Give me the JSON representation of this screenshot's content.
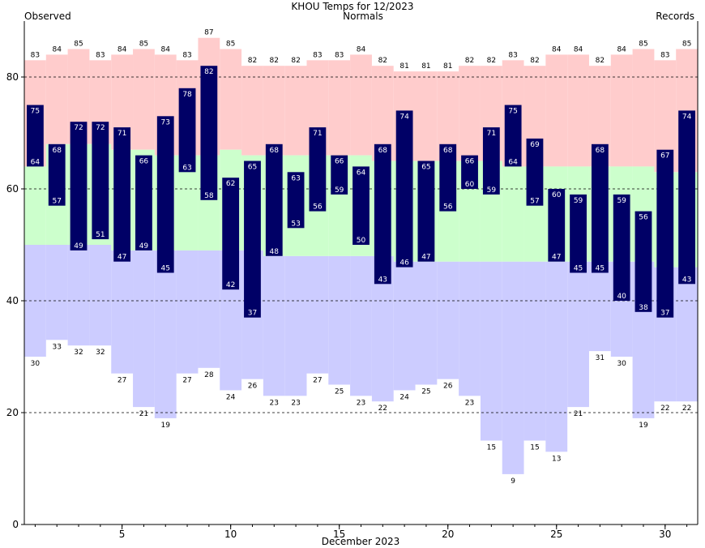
{
  "chart_data": {
    "type": "bar",
    "title": "KHOU Temps for 12/2023",
    "xlabel": "December 2023",
    "ylabel": "",
    "legend": {
      "observed": "Observed",
      "normals": "Normals",
      "records": "Records"
    },
    "colors": {
      "observed": "#000066",
      "normals": "#ccffcc",
      "records": "#ffcccc",
      "records_low": "#ccccff",
      "observed_label": "#000066",
      "normals_label": "#006600",
      "records_label": "#cc66cc"
    },
    "ylim": [
      0,
      90
    ],
    "xlim": [
      0.5,
      31.5
    ],
    "yticks": [
      0,
      20,
      40,
      60,
      80
    ],
    "xticks": [
      5,
      10,
      15,
      20,
      25,
      30
    ],
    "grid": "dashed at 20, 40, 60, 80",
    "days": [
      1,
      2,
      3,
      4,
      5,
      6,
      7,
      8,
      9,
      10,
      11,
      12,
      13,
      14,
      15,
      16,
      17,
      18,
      19,
      20,
      21,
      22,
      23,
      24,
      25,
      26,
      27,
      28,
      29,
      30,
      31
    ],
    "observed_high": [
      75,
      68,
      72,
      72,
      71,
      66,
      73,
      78,
      82,
      62,
      65,
      68,
      63,
      71,
      66,
      64,
      68,
      74,
      65,
      68,
      66,
      71,
      75,
      69,
      60,
      59,
      68,
      59,
      56,
      67,
      74
    ],
    "observed_low": [
      64,
      57,
      49,
      51,
      47,
      49,
      45,
      63,
      58,
      42,
      37,
      48,
      53,
      56,
      59,
      50,
      43,
      46,
      47,
      56,
      60,
      59,
      64,
      57,
      47,
      45,
      45,
      40,
      38,
      37,
      43
    ],
    "normal_high": [
      64,
      68,
      68,
      68,
      67,
      67,
      66,
      66,
      66,
      67,
      66,
      66,
      66,
      66,
      66,
      66,
      65,
      65,
      65,
      65,
      65,
      65,
      64,
      64,
      64,
      64,
      64,
      64,
      64,
      63,
      63
    ],
    "normal_low": [
      50,
      50,
      50,
      50,
      49,
      49,
      49,
      49,
      49,
      49,
      49,
      48,
      48,
      48,
      48,
      48,
      48,
      47,
      47,
      47,
      47,
      47,
      47,
      47,
      47,
      47,
      47,
      47,
      47,
      46,
      46
    ],
    "record_high": [
      83,
      84,
      85,
      83,
      84,
      85,
      84,
      83,
      87,
      85,
      82,
      82,
      82,
      83,
      83,
      84,
      82,
      81,
      81,
      81,
      82,
      82,
      83,
      82,
      84,
      84,
      82,
      84,
      85,
      83,
      85
    ],
    "record_low": [
      30,
      33,
      32,
      32,
      27,
      21,
      19,
      27,
      28,
      24,
      26,
      23,
      23,
      27,
      25,
      23,
      22,
      24,
      25,
      26,
      23,
      15,
      9,
      15,
      13,
      21,
      31,
      30,
      19,
      22,
      22
    ]
  }
}
